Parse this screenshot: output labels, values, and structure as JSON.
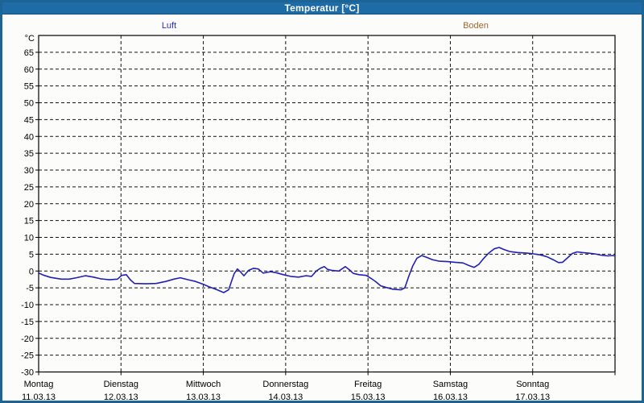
{
  "window": {
    "title": "Temperatur [°C]"
  },
  "legend": {
    "items": [
      {
        "label": "Luft",
        "color": "#2a2ad0"
      },
      {
        "label": "Boden",
        "color": "#a0662c"
      }
    ]
  },
  "chart_data": {
    "type": "line",
    "title": "Temperatur [°C]",
    "unit_label": "°C",
    "xlabel": "",
    "ylabel": "°C",
    "ylim": [
      -30,
      70
    ],
    "ytick_step": 5,
    "ytick_values": [
      65,
      60,
      55,
      50,
      45,
      40,
      35,
      30,
      25,
      20,
      15,
      10,
      5,
      0,
      -5,
      -10,
      -15,
      -20,
      -25,
      -30
    ],
    "grid": "dashed",
    "legend_position": "top",
    "x_unit": "days",
    "x_days": [
      {
        "day": "Montag",
        "date": "11.03.13"
      },
      {
        "day": "Dienstag",
        "date": "12.03.13"
      },
      {
        "day": "Mittwoch",
        "date": "13.03.13"
      },
      {
        "day": "Donnerstag",
        "date": "14.03.13"
      },
      {
        "day": "Freitag",
        "date": "15.03.13"
      },
      {
        "day": "Samstag",
        "date": "16.03.13"
      },
      {
        "day": "Sonntag",
        "date": "17.03.13"
      }
    ],
    "series": [
      {
        "name": "Luft",
        "color": "#2121ad",
        "points": [
          [
            0.0,
            -0.6
          ],
          [
            0.068,
            -1.3
          ],
          [
            0.147,
            -1.9
          ],
          [
            0.274,
            -2.4
          ],
          [
            0.371,
            -2.4
          ],
          [
            0.459,
            -2.0
          ],
          [
            0.567,
            -1.4
          ],
          [
            0.665,
            -1.8
          ],
          [
            0.753,
            -2.3
          ],
          [
            0.86,
            -2.6
          ],
          [
            0.958,
            -2.4
          ],
          [
            1.007,
            -1.3
          ],
          [
            1.065,
            -1.1
          ],
          [
            1.114,
            -2.6
          ],
          [
            1.163,
            -3.7
          ],
          [
            1.3,
            -3.8
          ],
          [
            1.427,
            -3.7
          ],
          [
            1.544,
            -3.1
          ],
          [
            1.642,
            -2.4
          ],
          [
            1.72,
            -2.0
          ],
          [
            1.818,
            -2.6
          ],
          [
            1.906,
            -3.1
          ],
          [
            2.004,
            -4.0
          ],
          [
            2.082,
            -4.8
          ],
          [
            2.17,
            -5.6
          ],
          [
            2.248,
            -6.4
          ],
          [
            2.307,
            -5.6
          ],
          [
            2.346,
            -2.8
          ],
          [
            2.375,
            -0.8
          ],
          [
            2.414,
            0.6
          ],
          [
            2.453,
            -0.3
          ],
          [
            2.493,
            -1.4
          ],
          [
            2.551,
            0.2
          ],
          [
            2.61,
            0.8
          ],
          [
            2.668,
            0.6
          ],
          [
            2.727,
            -0.6
          ],
          [
            2.815,
            -0.2
          ],
          [
            2.884,
            -0.5
          ],
          [
            2.972,
            -1.1
          ],
          [
            3.06,
            -1.6
          ],
          [
            3.157,
            -1.8
          ],
          [
            3.245,
            -1.4
          ],
          [
            3.314,
            -1.6
          ],
          [
            3.372,
            0.0
          ],
          [
            3.421,
            0.8
          ],
          [
            3.47,
            1.3
          ],
          [
            3.509,
            0.5
          ],
          [
            3.558,
            0.2
          ],
          [
            3.646,
            0.0
          ],
          [
            3.724,
            1.3
          ],
          [
            3.773,
            0.4
          ],
          [
            3.822,
            -0.7
          ],
          [
            3.89,
            -1.1
          ],
          [
            3.978,
            -1.3
          ],
          [
            4.037,
            -2.2
          ],
          [
            4.096,
            -3.2
          ],
          [
            4.154,
            -4.4
          ],
          [
            4.223,
            -4.9
          ],
          [
            4.301,
            -5.4
          ],
          [
            4.399,
            -5.6
          ],
          [
            4.447,
            -5.0
          ],
          [
            4.496,
            -1.5
          ],
          [
            4.545,
            1.6
          ],
          [
            4.594,
            3.8
          ],
          [
            4.653,
            4.6
          ],
          [
            4.721,
            4.0
          ],
          [
            4.78,
            3.4
          ],
          [
            4.868,
            2.9
          ],
          [
            4.966,
            2.8
          ],
          [
            5.054,
            2.6
          ],
          [
            5.152,
            2.4
          ],
          [
            5.23,
            1.6
          ],
          [
            5.289,
            1.1
          ],
          [
            5.347,
            2.0
          ],
          [
            5.406,
            3.8
          ],
          [
            5.465,
            5.3
          ],
          [
            5.533,
            6.6
          ],
          [
            5.592,
            7.0
          ],
          [
            5.65,
            6.4
          ],
          [
            5.719,
            5.8
          ],
          [
            5.816,
            5.5
          ],
          [
            5.934,
            5.3
          ],
          [
            6.012,
            5.1
          ],
          [
            6.09,
            4.8
          ],
          [
            6.168,
            4.3
          ],
          [
            6.246,
            3.4
          ],
          [
            6.315,
            2.5
          ],
          [
            6.364,
            2.6
          ],
          [
            6.422,
            3.9
          ],
          [
            6.481,
            5.2
          ],
          [
            6.54,
            5.7
          ],
          [
            6.598,
            5.5
          ],
          [
            6.677,
            5.3
          ],
          [
            6.755,
            5.1
          ],
          [
            6.833,
            4.7
          ],
          [
            6.911,
            4.5
          ],
          [
            6.97,
            4.6
          ],
          [
            7.0,
            4.5
          ]
        ]
      }
    ]
  }
}
